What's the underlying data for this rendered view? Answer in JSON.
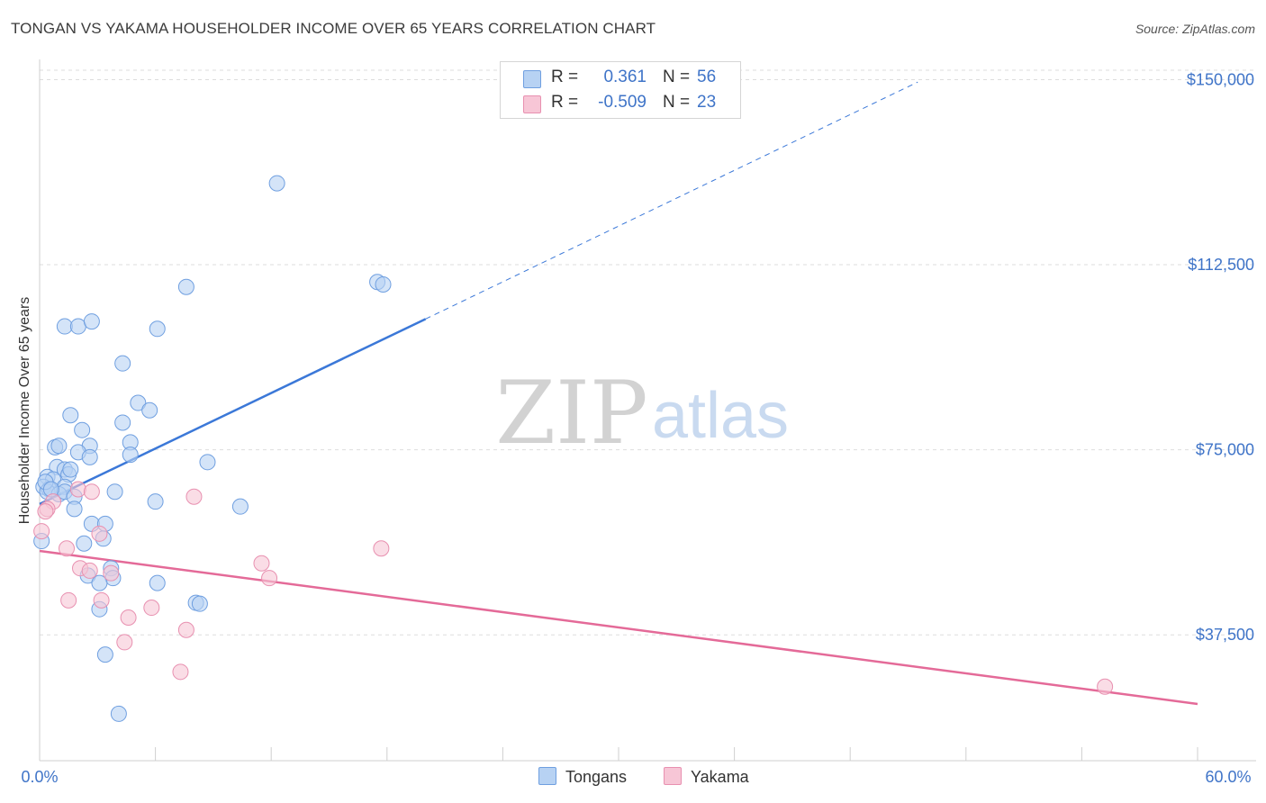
{
  "title": "TONGAN VS YAKAMA HOUSEHOLDER INCOME OVER 65 YEARS CORRELATION CHART",
  "source": "Source: ZipAtlas.com",
  "watermark": {
    "zip": "ZIP",
    "atlas": "atlas"
  },
  "colors": {
    "blue": "#3b78d8",
    "blue_fill": "#b7d2f3",
    "pink": "#e46a98",
    "pink_fill": "#f7c6d6",
    "axis_value": "#3f74c8",
    "grid": "#dddddd"
  },
  "legend": {
    "rows": [
      {
        "r_label": "R =",
        "r_value": "0.361",
        "n_label": "N =",
        "n_value": "56"
      },
      {
        "r_label": "R =",
        "r_value": "-0.509",
        "n_label": "N =",
        "n_value": "23"
      }
    ]
  },
  "bottom_legend": {
    "tongans": "Tongans",
    "yakama": "Yakama"
  },
  "chart_data": {
    "type": "scatter",
    "title": "TONGAN VS YAKAMA HOUSEHOLDER INCOME OVER 65 YEARS CORRELATION CHART",
    "xlabel": "",
    "ylabel": "Householder Income Over 65 years",
    "xlim": [
      0,
      60
    ],
    "ylim": [
      12000,
      153000
    ],
    "x_tick_labels": {
      "left": "0.0%",
      "right": "60.0%"
    },
    "y_ticks": [
      37500,
      75000,
      112500,
      150000
    ],
    "y_tick_labels": [
      "$37,500",
      "$75,000",
      "$112,500",
      "$150,000"
    ],
    "grid": true,
    "legend_position": "top-center",
    "series": [
      {
        "name": "Tongans",
        "r": 0.361,
        "n": 56,
        "trend": {
          "x0": 0,
          "y0": 64000,
          "x1": 20,
          "y1": 101500,
          "dash_to_x": 45.5,
          "dash_to_y": 149500
        },
        "points": [
          [
            12.3,
            129000
          ],
          [
            7.6,
            108000
          ],
          [
            17.5,
            109000
          ],
          [
            17.8,
            108500
          ],
          [
            1.3,
            100000
          ],
          [
            2.0,
            100000
          ],
          [
            2.7,
            101000
          ],
          [
            6.1,
            99500
          ],
          [
            4.3,
            92500
          ],
          [
            5.1,
            84500
          ],
          [
            5.7,
            83000
          ],
          [
            1.6,
            82000
          ],
          [
            4.3,
            80500
          ],
          [
            2.2,
            79000
          ],
          [
            4.7,
            76500
          ],
          [
            0.8,
            75500
          ],
          [
            1.0,
            75800
          ],
          [
            2.6,
            75800
          ],
          [
            2.0,
            74500
          ],
          [
            2.6,
            73500
          ],
          [
            4.7,
            74000
          ],
          [
            8.7,
            72500
          ],
          [
            0.9,
            71500
          ],
          [
            1.3,
            71000
          ],
          [
            1.5,
            70000
          ],
          [
            1.6,
            71000
          ],
          [
            0.4,
            69500
          ],
          [
            0.7,
            69000
          ],
          [
            0.2,
            67500
          ],
          [
            0.5,
            67000
          ],
          [
            1.3,
            67500
          ],
          [
            0.4,
            66500
          ],
          [
            1.0,
            66000
          ],
          [
            1.3,
            66500
          ],
          [
            3.9,
            66500
          ],
          [
            1.8,
            65500
          ],
          [
            6.0,
            64500
          ],
          [
            10.4,
            63500
          ],
          [
            1.8,
            63000
          ],
          [
            2.7,
            60000
          ],
          [
            3.4,
            60000
          ],
          [
            0.1,
            56500
          ],
          [
            2.3,
            56000
          ],
          [
            3.3,
            57000
          ],
          [
            3.7,
            51000
          ],
          [
            2.5,
            49500
          ],
          [
            3.8,
            49000
          ],
          [
            3.1,
            48000
          ],
          [
            6.1,
            48000
          ],
          [
            8.1,
            44000
          ],
          [
            8.3,
            43800
          ],
          [
            3.1,
            42700
          ],
          [
            3.4,
            33500
          ],
          [
            4.1,
            21500
          ],
          [
            0.3,
            68500
          ],
          [
            0.6,
            67000
          ]
        ]
      },
      {
        "name": "Yakama",
        "r": -0.509,
        "n": 23,
        "trend": {
          "x0": 0,
          "y0": 54500,
          "x1": 60,
          "y1": 23500
        },
        "points": [
          [
            0.1,
            58500
          ],
          [
            0.7,
            64500
          ],
          [
            0.4,
            63000
          ],
          [
            2.0,
            67000
          ],
          [
            2.7,
            66500
          ],
          [
            8.0,
            65500
          ],
          [
            1.4,
            55000
          ],
          [
            3.1,
            58000
          ],
          [
            17.7,
            55000
          ],
          [
            11.5,
            52000
          ],
          [
            2.1,
            51000
          ],
          [
            2.6,
            50500
          ],
          [
            3.7,
            50000
          ],
          [
            11.9,
            49000
          ],
          [
            1.5,
            44500
          ],
          [
            3.2,
            44500
          ],
          [
            5.8,
            43000
          ],
          [
            4.6,
            41000
          ],
          [
            7.6,
            38500
          ],
          [
            4.4,
            36000
          ],
          [
            7.3,
            30000
          ],
          [
            55.2,
            27000
          ],
          [
            0.3,
            62500
          ]
        ]
      }
    ]
  }
}
